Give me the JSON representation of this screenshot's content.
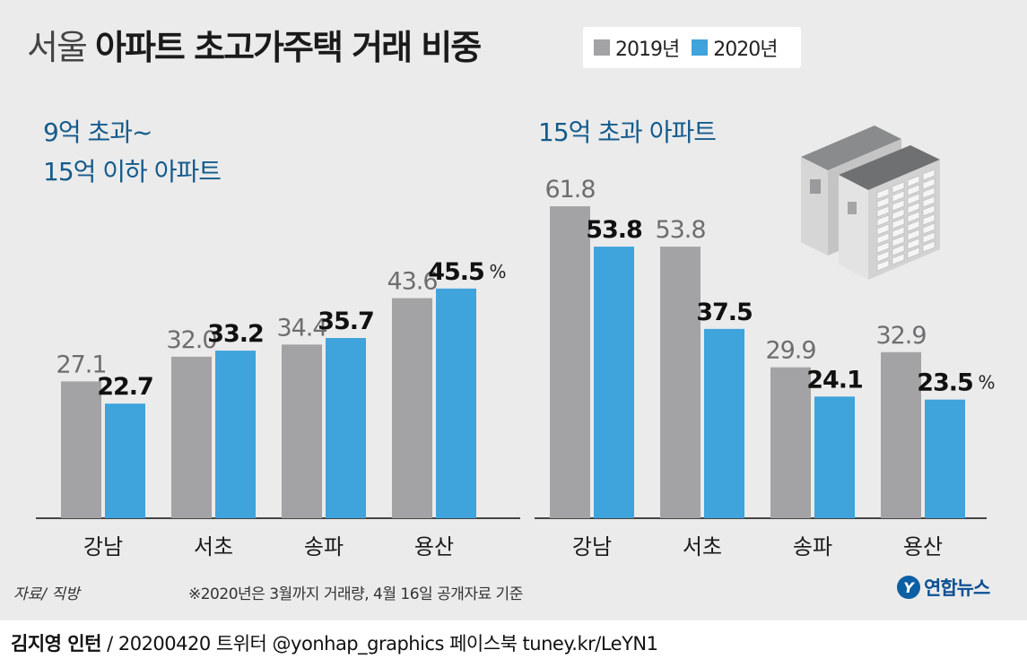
{
  "header": {
    "title_light": "서울",
    "title_bold": "아파트 초고가주택 거래 비중"
  },
  "legend": {
    "items": [
      {
        "label": "2019년",
        "color": "#a3a3a5"
      },
      {
        "label": "2020년",
        "color": "#3fa3dc"
      }
    ]
  },
  "chart_data": [
    {
      "type": "bar",
      "title_lines": [
        "9억 초과~",
        "15억 이하 아파트"
      ],
      "categories": [
        "강남",
        "서초",
        "송파",
        "용산"
      ],
      "series": [
        {
          "name": "2019년",
          "values": [
            27.1,
            32.0,
            34.4,
            43.6
          ],
          "labels": [
            "27.1",
            "32.0",
            "34.4",
            "43.6"
          ]
        },
        {
          "name": "2020년",
          "values": [
            22.7,
            33.2,
            35.7,
            45.5
          ],
          "labels": [
            "22.7",
            "33.2",
            "35.7",
            "45.5"
          ]
        }
      ],
      "unit": "%",
      "ylim": [
        0,
        70
      ],
      "grid": false
    },
    {
      "type": "bar",
      "title_lines": [
        "15억 초과 아파트"
      ],
      "categories": [
        "강남",
        "서초",
        "송파",
        "용산"
      ],
      "series": [
        {
          "name": "2019년",
          "values": [
            61.8,
            53.8,
            29.9,
            32.9
          ],
          "labels": [
            "61.8",
            "53.8",
            "29.9",
            "32.9"
          ]
        },
        {
          "name": "2020년",
          "values": [
            53.8,
            37.5,
            24.1,
            23.5
          ],
          "labels": [
            "53.8",
            "37.5",
            "24.1",
            "23.5"
          ]
        }
      ],
      "unit": "%",
      "ylim": [
        0,
        70
      ],
      "grid": false
    }
  ],
  "footer": {
    "source": "자료/ 직방",
    "note": "※2020년은 3월까지 거래량, 4월 16일 공개자료 기준",
    "logo_mark": "Y",
    "logo_text": "연합뉴스",
    "credit_author": "김지영 인턴",
    "credit_rest": " / 20200420  트위터 @yonhap_graphics  페이스북 tuney.kr/LeYN1"
  },
  "colors": {
    "bar_2019": "#a3a3a5",
    "bar_2020": "#3fa3dc",
    "label_2019": "#6e6e70",
    "label_2020": "#111111",
    "panel_bg": "#ebebeb",
    "subtitle": "#145b8c"
  },
  "icons": {
    "building": "apartment-building-icon"
  }
}
